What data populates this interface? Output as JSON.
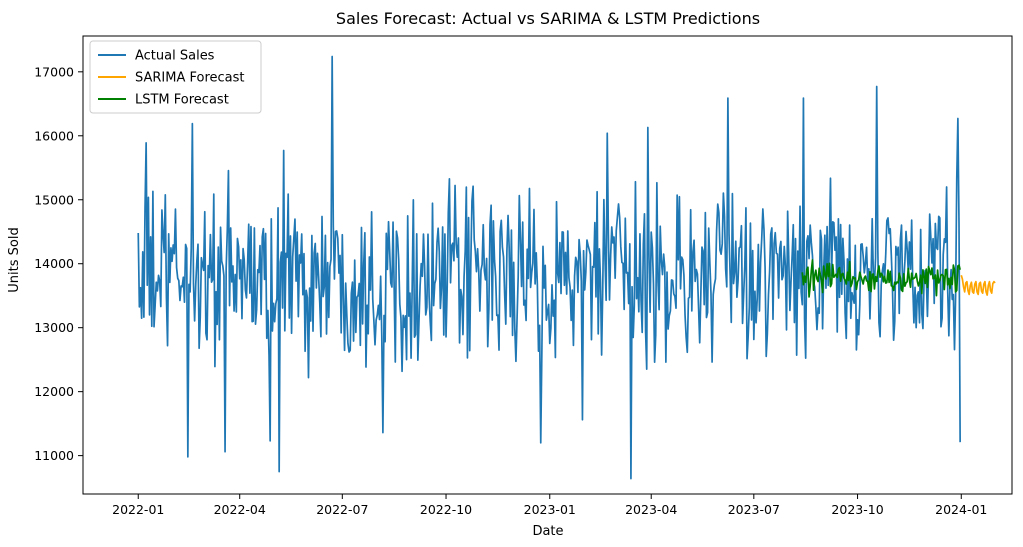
{
  "chart_data": {
    "type": "line",
    "title": "Sales Forecast: Actual vs SARIMA & LSTM Predictions",
    "xlabel": "Date",
    "ylabel": "Units Sold",
    "x_range": [
      "2021-11-13",
      "2024-02-15"
    ],
    "ylim": [
      10400,
      17560
    ],
    "x_ticks": [
      "2022-01",
      "2022-04",
      "2022-07",
      "2022-10",
      "2023-01",
      "2023-04",
      "2023-07",
      "2023-10",
      "2024-01"
    ],
    "y_ticks": [
      11000,
      12000,
      13000,
      14000,
      15000,
      16000,
      17000
    ],
    "grid": false,
    "legend_position": "upper left",
    "series": [
      {
        "name": "Actual Sales",
        "color": "#1f77b4",
        "x_start": "2022-01-01",
        "x_end": "2023-12-31",
        "step_days": 1,
        "mean": 13800,
        "amplitude": 800,
        "y_min": 10640,
        "y_max": 17240,
        "notable_points": [
          {
            "x": "2022-01-01",
            "y": 14480
          },
          {
            "x": "2022-01-08",
            "y": 15890
          },
          {
            "x": "2022-02-14",
            "y": 10980
          },
          {
            "x": "2022-02-18",
            "y": 16190
          },
          {
            "x": "2022-03-19",
            "y": 11060
          },
          {
            "x": "2022-04-28",
            "y": 11230
          },
          {
            "x": "2022-05-06",
            "y": 10750
          },
          {
            "x": "2022-05-10",
            "y": 15770
          },
          {
            "x": "2022-06-22",
            "y": 17240
          },
          {
            "x": "2022-08-06",
            "y": 11360
          },
          {
            "x": "2022-12-24",
            "y": 11200
          },
          {
            "x": "2023-01-30",
            "y": 11560
          },
          {
            "x": "2023-02-21",
            "y": 16040
          },
          {
            "x": "2023-03-14",
            "y": 10640
          },
          {
            "x": "2023-03-29",
            "y": 16130
          },
          {
            "x": "2023-06-08",
            "y": 16590
          },
          {
            "x": "2023-08-14",
            "y": 16590
          },
          {
            "x": "2023-10-18",
            "y": 16770
          },
          {
            "x": "2023-12-29",
            "y": 16270
          },
          {
            "x": "2023-12-31",
            "y": 11210
          }
        ]
      },
      {
        "name": "SARIMA Forecast",
        "color": "#ffa500",
        "x_start": "2024-01-01",
        "x_end": "2024-01-31",
        "step_days": 1,
        "values": [
          13820,
          13760,
          13640,
          13560,
          13700,
          13720,
          13580,
          13520,
          13660,
          13710,
          13560,
          13540,
          13680,
          13720,
          13560,
          13520,
          13690,
          13710,
          13570,
          13540,
          13680,
          13720,
          13560,
          13510,
          13660,
          13720,
          13580,
          13540,
          13690,
          13720,
          13700
        ]
      },
      {
        "name": "LSTM Forecast",
        "color": "#008000",
        "x_start": "2023-08-13",
        "x_end": "2023-12-31",
        "step_days": 1,
        "mean": 13770,
        "amplitude": 150,
        "y_min": 13470,
        "y_max": 14080
      }
    ]
  }
}
